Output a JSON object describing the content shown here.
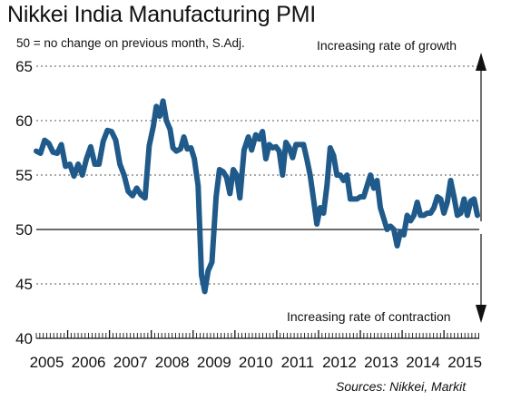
{
  "chart_data": {
    "type": "line",
    "title": "Nikkei India Manufacturing PMI",
    "subtitle": "50 = no change on previous month, S.Adj.",
    "annotations": {
      "above": "Increasing rate of growth",
      "below": "Increasing rate of contraction"
    },
    "source": "Sources: Nikkei, Markit",
    "ylim": [
      40,
      65
    ],
    "yticks": [
      65,
      60,
      55,
      50,
      45,
      40
    ],
    "reference_line": 50,
    "x_categories": [
      "2005",
      "2006",
      "2007",
      "2008",
      "2009",
      "2010",
      "2011",
      "2012",
      "2013",
      "2014",
      "2015"
    ],
    "x_start": 2005.25,
    "x_end": 2015.8,
    "grid": "horizontal dotted",
    "line_color": "#1f5a8a",
    "series": [
      {
        "points": [
          [
            2005.25,
            57.2
          ],
          [
            2005.35,
            57.0
          ],
          [
            2005.45,
            58.2
          ],
          [
            2005.55,
            57.9
          ],
          [
            2005.65,
            57.1
          ],
          [
            2005.75,
            57.0
          ],
          [
            2005.85,
            57.8
          ],
          [
            2005.95,
            55.8
          ],
          [
            2006.05,
            56.0
          ],
          [
            2006.15,
            54.9
          ],
          [
            2006.25,
            56.0
          ],
          [
            2006.35,
            55.0
          ],
          [
            2006.45,
            56.5
          ],
          [
            2006.55,
            57.6
          ],
          [
            2006.65,
            56.0
          ],
          [
            2006.75,
            56.0
          ],
          [
            2006.85,
            58.1
          ],
          [
            2006.95,
            59.1
          ],
          [
            2007.05,
            59.0
          ],
          [
            2007.15,
            58.2
          ],
          [
            2007.25,
            56.0
          ],
          [
            2007.35,
            55.0
          ],
          [
            2007.45,
            53.5
          ],
          [
            2007.55,
            53.1
          ],
          [
            2007.65,
            53.8
          ],
          [
            2007.75,
            53.2
          ],
          [
            2007.85,
            52.9
          ],
          [
            2007.95,
            57.7
          ],
          [
            2008.05,
            59.5
          ],
          [
            2008.12,
            61.3
          ],
          [
            2008.2,
            60.4
          ],
          [
            2008.28,
            61.8
          ],
          [
            2008.36,
            60.0
          ],
          [
            2008.45,
            59.2
          ],
          [
            2008.52,
            57.5
          ],
          [
            2008.6,
            57.2
          ],
          [
            2008.7,
            57.4
          ],
          [
            2008.78,
            58.5
          ],
          [
            2008.86,
            57.4
          ],
          [
            2008.95,
            57.5
          ],
          [
            2009.03,
            56.5
          ],
          [
            2009.12,
            54.0
          ],
          [
            2009.2,
            45.8
          ],
          [
            2009.28,
            44.3
          ],
          [
            2009.36,
            46.2
          ],
          [
            2009.45,
            47.0
          ],
          [
            2009.55,
            53.0
          ],
          [
            2009.63,
            55.5
          ],
          [
            2009.72,
            55.3
          ],
          [
            2009.8,
            54.8
          ],
          [
            2009.88,
            53.3
          ],
          [
            2009.96,
            55.5
          ],
          [
            2010.04,
            55.0
          ],
          [
            2010.12,
            52.9
          ],
          [
            2010.22,
            57.3
          ],
          [
            2010.32,
            58.5
          ],
          [
            2010.4,
            57.3
          ],
          [
            2010.5,
            58.7
          ],
          [
            2010.58,
            58.3
          ],
          [
            2010.66,
            59.0
          ],
          [
            2010.74,
            56.5
          ],
          [
            2010.82,
            57.8
          ],
          [
            2010.9,
            57.5
          ],
          [
            2010.98,
            57.6
          ],
          [
            2011.06,
            57.2
          ],
          [
            2011.14,
            55.0
          ],
          [
            2011.22,
            58.0
          ],
          [
            2011.3,
            57.5
          ],
          [
            2011.38,
            56.6
          ],
          [
            2011.46,
            57.8
          ],
          [
            2011.56,
            57.8
          ],
          [
            2011.64,
            57.8
          ],
          [
            2011.72,
            56.5
          ],
          [
            2011.8,
            55.0
          ],
          [
            2011.88,
            52.8
          ],
          [
            2011.96,
            50.5
          ],
          [
            2012.04,
            52.0
          ],
          [
            2012.12,
            51.5
          ],
          [
            2012.2,
            54.0
          ],
          [
            2012.28,
            57.5
          ],
          [
            2012.36,
            56.8
          ],
          [
            2012.44,
            55.0
          ],
          [
            2012.52,
            55.0
          ],
          [
            2012.6,
            54.5
          ],
          [
            2012.68,
            55.0
          ],
          [
            2012.76,
            52.8
          ],
          [
            2012.84,
            52.8
          ],
          [
            2012.92,
            52.8
          ],
          [
            2013.0,
            53.0
          ],
          [
            2013.08,
            53.0
          ],
          [
            2013.16,
            54.0
          ],
          [
            2013.24,
            55.0
          ],
          [
            2013.32,
            53.8
          ],
          [
            2013.4,
            54.5
          ],
          [
            2013.48,
            52.0
          ],
          [
            2013.56,
            51.0
          ],
          [
            2013.64,
            50.0
          ],
          [
            2013.72,
            50.3
          ],
          [
            2013.8,
            50.0
          ],
          [
            2013.88,
            48.5
          ],
          [
            2013.96,
            49.8
          ],
          [
            2014.04,
            49.5
          ],
          [
            2014.12,
            51.3
          ],
          [
            2014.2,
            50.8
          ],
          [
            2014.28,
            51.3
          ],
          [
            2014.36,
            52.5
          ],
          [
            2014.44,
            51.3
          ],
          [
            2014.52,
            51.3
          ],
          [
            2014.6,
            51.5
          ],
          [
            2014.68,
            51.5
          ],
          [
            2014.76,
            52.0
          ],
          [
            2014.84,
            53.0
          ],
          [
            2014.92,
            52.8
          ],
          [
            2015.0,
            51.5
          ],
          [
            2015.08,
            52.5
          ],
          [
            2015.16,
            54.5
          ],
          [
            2015.24,
            53.0
          ],
          [
            2015.32,
            51.3
          ],
          [
            2015.4,
            51.5
          ],
          [
            2015.48,
            52.8
          ],
          [
            2015.56,
            51.3
          ],
          [
            2015.64,
            52.6
          ],
          [
            2015.72,
            52.8
          ],
          [
            2015.8,
            51.3
          ]
        ]
      }
    ]
  }
}
